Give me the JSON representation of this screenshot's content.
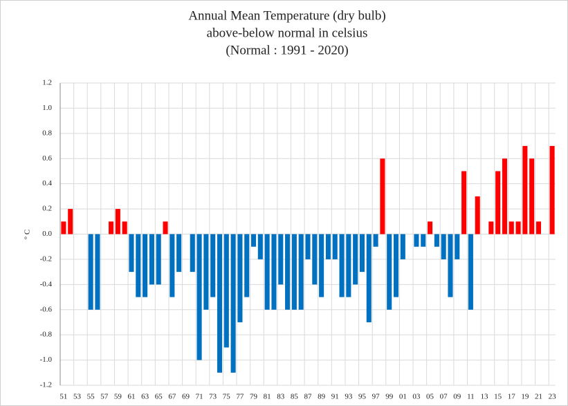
{
  "chart_data": {
    "type": "bar",
    "title": [
      "Annual Mean Temperature (dry bulb)",
      "above-below normal  in celsius",
      "(Normal : 1991 - 2020)"
    ],
    "y_label": "° C",
    "categories": [
      "51",
      null,
      "53",
      null,
      "55",
      null,
      "57",
      null,
      "59",
      null,
      "61",
      null,
      "63",
      null,
      "65",
      null,
      "67",
      null,
      "69",
      null,
      "71",
      null,
      "73",
      null,
      "75",
      null,
      "77",
      null,
      "79",
      null,
      "81",
      null,
      "83",
      null,
      "85",
      null,
      "87",
      null,
      "89",
      null,
      "91",
      null,
      "93",
      null,
      "95",
      null,
      "97",
      null,
      "99",
      null,
      "01",
      null,
      "03",
      null,
      "05",
      null,
      "07",
      null,
      "09",
      null,
      "11",
      null,
      "13",
      null,
      "15",
      null,
      "17",
      null,
      "19",
      null,
      "21",
      null,
      "23"
    ],
    "values": [
      0.1,
      0.2,
      0,
      0,
      -0.6,
      -0.6,
      0,
      0.1,
      0.2,
      0.1,
      -0.3,
      -0.5,
      -0.5,
      -0.4,
      -0.4,
      0.1,
      -0.5,
      -0.3,
      0,
      -0.3,
      -1.0,
      -0.6,
      -0.5,
      -1.1,
      -0.9,
      -1.1,
      -0.7,
      -0.5,
      -0.1,
      -0.2,
      -0.6,
      -0.6,
      -0.4,
      -0.6,
      -0.6,
      -0.6,
      -0.2,
      -0.4,
      -0.5,
      -0.2,
      -0.2,
      -0.5,
      -0.5,
      -0.4,
      -0.3,
      -0.7,
      -0.1,
      0.6,
      -0.6,
      -0.5,
      -0.2,
      0,
      -0.1,
      -0.1,
      0.1,
      -0.1,
      -0.2,
      -0.5,
      -0.2,
      0.5,
      -0.6,
      0.3,
      0,
      0.1,
      0.5,
      0.6,
      0.1,
      0.1,
      0.7,
      0.6,
      0.1,
      0,
      0.7
    ],
    "positive_color": "#ff0000",
    "negative_color": "#0070c0",
    "ylim": [
      -1.2,
      1.2
    ],
    "yticks": [
      -1.2,
      {
        "value": -1,
        "label": "-1.0"
      },
      -0.8,
      -0.6,
      -0.4,
      -0.2,
      {
        "value": 0,
        "label": "0.0"
      },
      0.2,
      0.4,
      0.6,
      0.8,
      {
        "value": 1,
        "label": "1.0"
      },
      1.2
    ],
    "grid": true
  }
}
